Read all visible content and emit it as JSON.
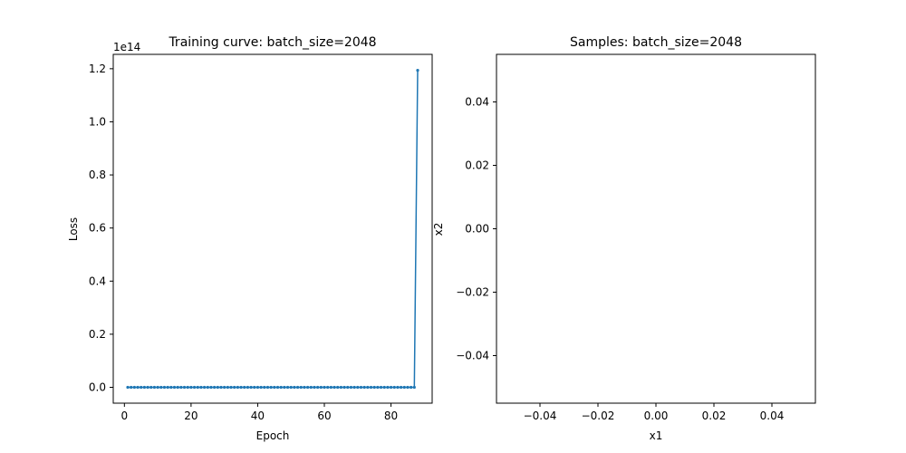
{
  "chart_data": [
    {
      "type": "line",
      "title": "Training curve: batch_size=2048",
      "xlabel": "Epoch",
      "ylabel": "Loss",
      "y_offset_label": "1e14",
      "y_unit_scale": 100000000000000.0,
      "xlim": [
        -3.35,
        92.35
      ],
      "ylim": [
        -5970000000000.0,
        125410000000000.0
      ],
      "xticks": [
        0,
        20,
        40,
        60,
        80
      ],
      "yticks": [
        0,
        20000000000000.0,
        40000000000000.0,
        60000000000000.0,
        80000000000000.0,
        100000000000000.0,
        120000000000000.0
      ],
      "ytick_labels": [
        "0.0",
        "0.2",
        "0.4",
        "0.6",
        "0.8",
        "1.0",
        "1.2"
      ],
      "grid": false,
      "color": "#1f77b4",
      "series": [
        {
          "name": "",
          "x": [
            1,
            2,
            3,
            4,
            5,
            6,
            7,
            8,
            9,
            10,
            11,
            12,
            13,
            14,
            15,
            16,
            17,
            18,
            19,
            20,
            21,
            22,
            23,
            24,
            25,
            26,
            27,
            28,
            29,
            30,
            31,
            32,
            33,
            34,
            35,
            36,
            37,
            38,
            39,
            40,
            41,
            42,
            43,
            44,
            45,
            46,
            47,
            48,
            49,
            50,
            51,
            52,
            53,
            54,
            55,
            56,
            57,
            58,
            59,
            60,
            61,
            62,
            63,
            64,
            65,
            66,
            67,
            68,
            69,
            70,
            71,
            72,
            73,
            74,
            75,
            76,
            77,
            78,
            79,
            80,
            81,
            82,
            83,
            84,
            85,
            86,
            87,
            88
          ],
          "y": [
            0,
            0,
            0,
            0,
            0,
            0,
            0,
            0,
            0,
            0,
            0,
            0,
            0,
            0,
            0,
            0,
            0,
            0,
            0,
            0,
            0,
            0,
            0,
            0,
            0,
            0,
            0,
            0,
            0,
            0,
            0,
            0,
            0,
            0,
            0,
            0,
            0,
            0,
            0,
            0,
            0,
            0,
            0,
            0,
            0,
            0,
            0,
            0,
            0,
            0,
            0,
            0,
            0,
            0,
            0,
            0,
            0,
            0,
            0,
            0,
            0,
            0,
            0,
            0,
            0,
            0,
            0,
            0,
            0,
            0,
            0,
            0,
            0,
            0,
            0,
            0,
            0,
            0,
            0,
            0,
            0,
            0,
            0,
            0,
            0,
            0,
            0,
            119400000000000.0
          ]
        }
      ]
    },
    {
      "type": "scatter",
      "title": "Samples: batch_size=2048",
      "xlabel": "x1",
      "ylabel": "x2",
      "xlim": [
        -0.055,
        0.055
      ],
      "ylim": [
        -0.055,
        0.055
      ],
      "xticks": [
        -0.04,
        -0.02,
        0.0,
        0.02,
        0.04
      ],
      "xtick_labels": [
        "−0.04",
        "−0.02",
        "0.00",
        "0.02",
        "0.04"
      ],
      "yticks": [
        -0.04,
        -0.02,
        0.0,
        0.02,
        0.04
      ],
      "ytick_labels": [
        "−0.04",
        "−0.02",
        "0.00",
        "0.02",
        "0.04"
      ],
      "grid": false,
      "series": [
        {
          "name": "",
          "x": [],
          "y": []
        }
      ]
    }
  ]
}
